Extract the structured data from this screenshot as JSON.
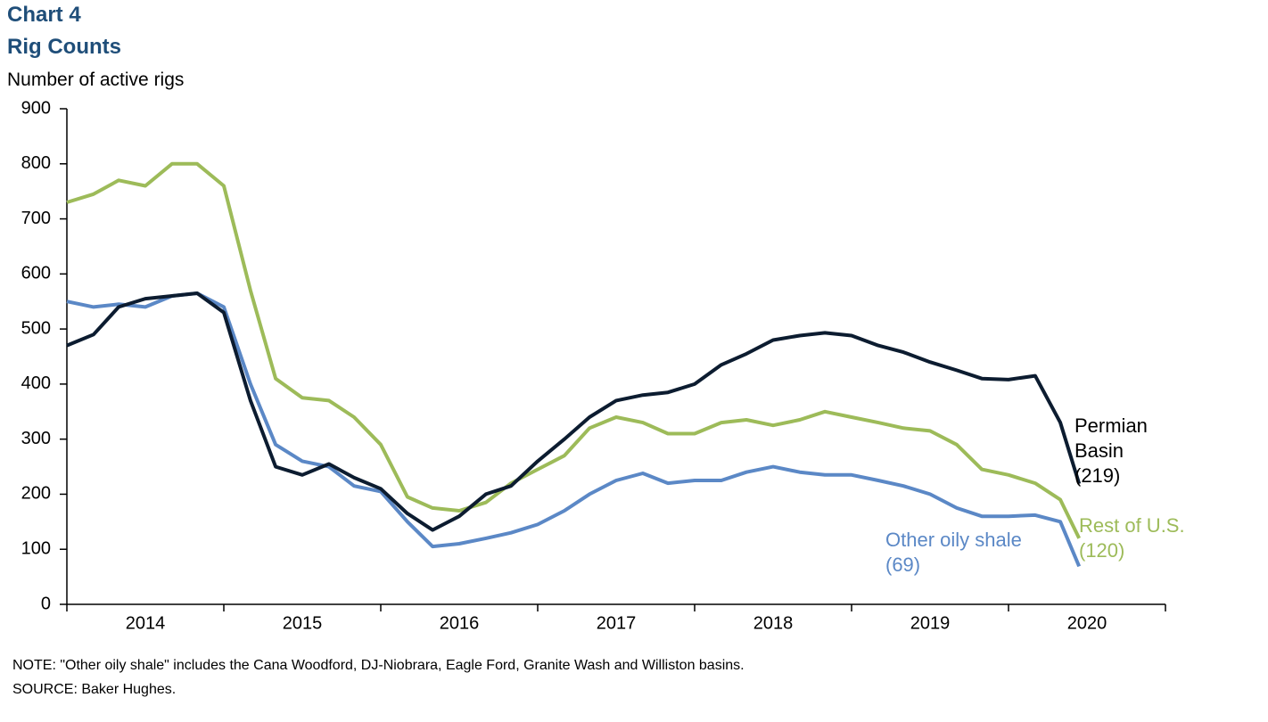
{
  "chart_data": {
    "type": "line",
    "title": "Chart 4",
    "subtitle": "Rig Counts",
    "y_label": "Number of active rigs",
    "categories": [
      "2014",
      "2015",
      "2016",
      "2017",
      "2018",
      "2019",
      "2020"
    ],
    "x": [
      2014,
      2014.17,
      2014.33,
      2014.5,
      2014.67,
      2014.83,
      2015,
      2015.17,
      2015.33,
      2015.5,
      2015.67,
      2015.83,
      2016,
      2016.17,
      2016.33,
      2016.5,
      2016.67,
      2016.83,
      2017,
      2017.17,
      2017.33,
      2017.5,
      2017.67,
      2017.83,
      2018,
      2018.17,
      2018.33,
      2018.5,
      2018.67,
      2018.83,
      2019,
      2019.17,
      2019.33,
      2019.5,
      2019.67,
      2019.83,
      2020,
      2020.17,
      2020.33,
      2020.45
    ],
    "xlim": [
      2014,
      2021
    ],
    "xticks": [
      2014,
      2015,
      2016,
      2017,
      2018,
      2019,
      2020,
      2021
    ],
    "ylim": [
      0,
      900
    ],
    "yticks": [
      0,
      100,
      200,
      300,
      400,
      500,
      600,
      700,
      800,
      900
    ],
    "grid": false,
    "series": [
      {
        "name": "Permian Basin",
        "color": "#0c1c30",
        "end_label": "(219)",
        "values": [
          470,
          490,
          540,
          555,
          560,
          565,
          530,
          370,
          250,
          235,
          255,
          230,
          210,
          165,
          135,
          160,
          200,
          215,
          260,
          300,
          340,
          370,
          380,
          385,
          400,
          435,
          455,
          480,
          488,
          493,
          488,
          470,
          458,
          440,
          425,
          410,
          408,
          415,
          330,
          219
        ]
      },
      {
        "name": "Rest of U.S.",
        "color": "#9dbb59",
        "end_label": "(120)",
        "values": [
          730,
          745,
          770,
          760,
          800,
          800,
          760,
          570,
          410,
          375,
          370,
          340,
          290,
          195,
          175,
          170,
          185,
          220,
          245,
          270,
          320,
          340,
          330,
          310,
          310,
          330,
          335,
          325,
          335,
          350,
          340,
          330,
          320,
          315,
          290,
          245,
          235,
          220,
          190,
          120
        ]
      },
      {
        "name": "Other oily shale",
        "color": "#5b88c6",
        "end_label": "(69)",
        "values": [
          550,
          540,
          545,
          540,
          560,
          565,
          540,
          400,
          290,
          260,
          250,
          215,
          205,
          150,
          105,
          110,
          120,
          130,
          145,
          170,
          200,
          225,
          238,
          220,
          225,
          225,
          240,
          250,
          240,
          235,
          235,
          225,
          215,
          200,
          175,
          160,
          160,
          162,
          150,
          69
        ]
      }
    ],
    "note": "NOTE: \"Other oily shale\" includes the Cana Woodford, DJ-Niobrara, Eagle Ford, Granite Wash and Williston basins.",
    "source": "SOURCE:  Baker Hughes."
  }
}
